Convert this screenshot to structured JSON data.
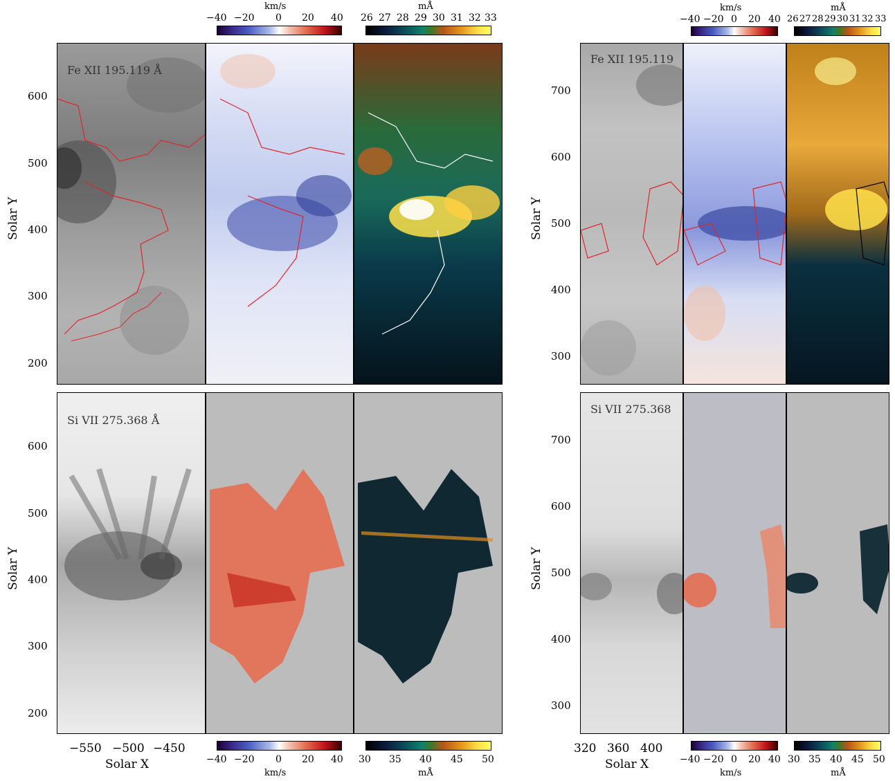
{
  "colorbars": {
    "velocity_unit": "km/s",
    "width_unit": "mÅ",
    "left_top_vel_ticks": [
      "−40",
      "−20",
      "0",
      "20",
      "40"
    ],
    "left_top_wid_ticks": [
      "26",
      "27",
      "28",
      "29",
      "30",
      "31",
      "32",
      "33"
    ],
    "right_top_vel_ticks": [
      "−40",
      "−20",
      "0",
      "20",
      "40"
    ],
    "right_top_wid_ticks": [
      "26",
      "27",
      "28",
      "29",
      "30",
      "31",
      "32",
      "33"
    ],
    "left_bot_vel_ticks": [
      "−40",
      "−20",
      "0",
      "20",
      "40"
    ],
    "left_bot_wid_ticks": [
      "30",
      "35",
      "40",
      "45",
      "50"
    ],
    "right_bot_vel_ticks": [
      "−40",
      "−20",
      "0",
      "20",
      "40"
    ],
    "right_bot_wid_ticks": [
      "30",
      "35",
      "40",
      "45",
      "50"
    ],
    "velocity_colors": [
      "#1a0033",
      "#4a5cc0",
      "#ffffff",
      "#e26a4c",
      "#3b0000"
    ],
    "width_colors": [
      "#000000",
      "#0b4a5a",
      "#3c7a26",
      "#e0901a",
      "#ffff60"
    ]
  },
  "left": {
    "top_title": "Fe XII 195.119 Å",
    "bottom_title": "Si VII 275.368 Å",
    "top_y_ticks": [
      "600",
      "500",
      "400",
      "300",
      "200"
    ],
    "bottom_y_ticks": [
      "600",
      "500",
      "400",
      "300",
      "200"
    ],
    "x_ticks": [
      "−550",
      "−500",
      "−450"
    ],
    "x_label": "Solar X",
    "y_label": "Solar Y"
  },
  "right": {
    "top_title": "Fe XII 195.119",
    "bottom_title": "Si VII 275.368",
    "top_y_ticks": [
      "700",
      "600",
      "500",
      "400",
      "300"
    ],
    "bottom_y_ticks": [
      "700",
      "600",
      "500",
      "400",
      "300"
    ],
    "x_ticks": [
      "320",
      "360",
      "400"
    ],
    "x_label": "Solar X",
    "y_label": "Solar Y"
  },
  "panel_colors": {
    "background_gray": "#bcbcbc",
    "contour_red": "#e0262a",
    "contour_white": "#ffffff",
    "intensity_dark": "#2a2a2a"
  }
}
